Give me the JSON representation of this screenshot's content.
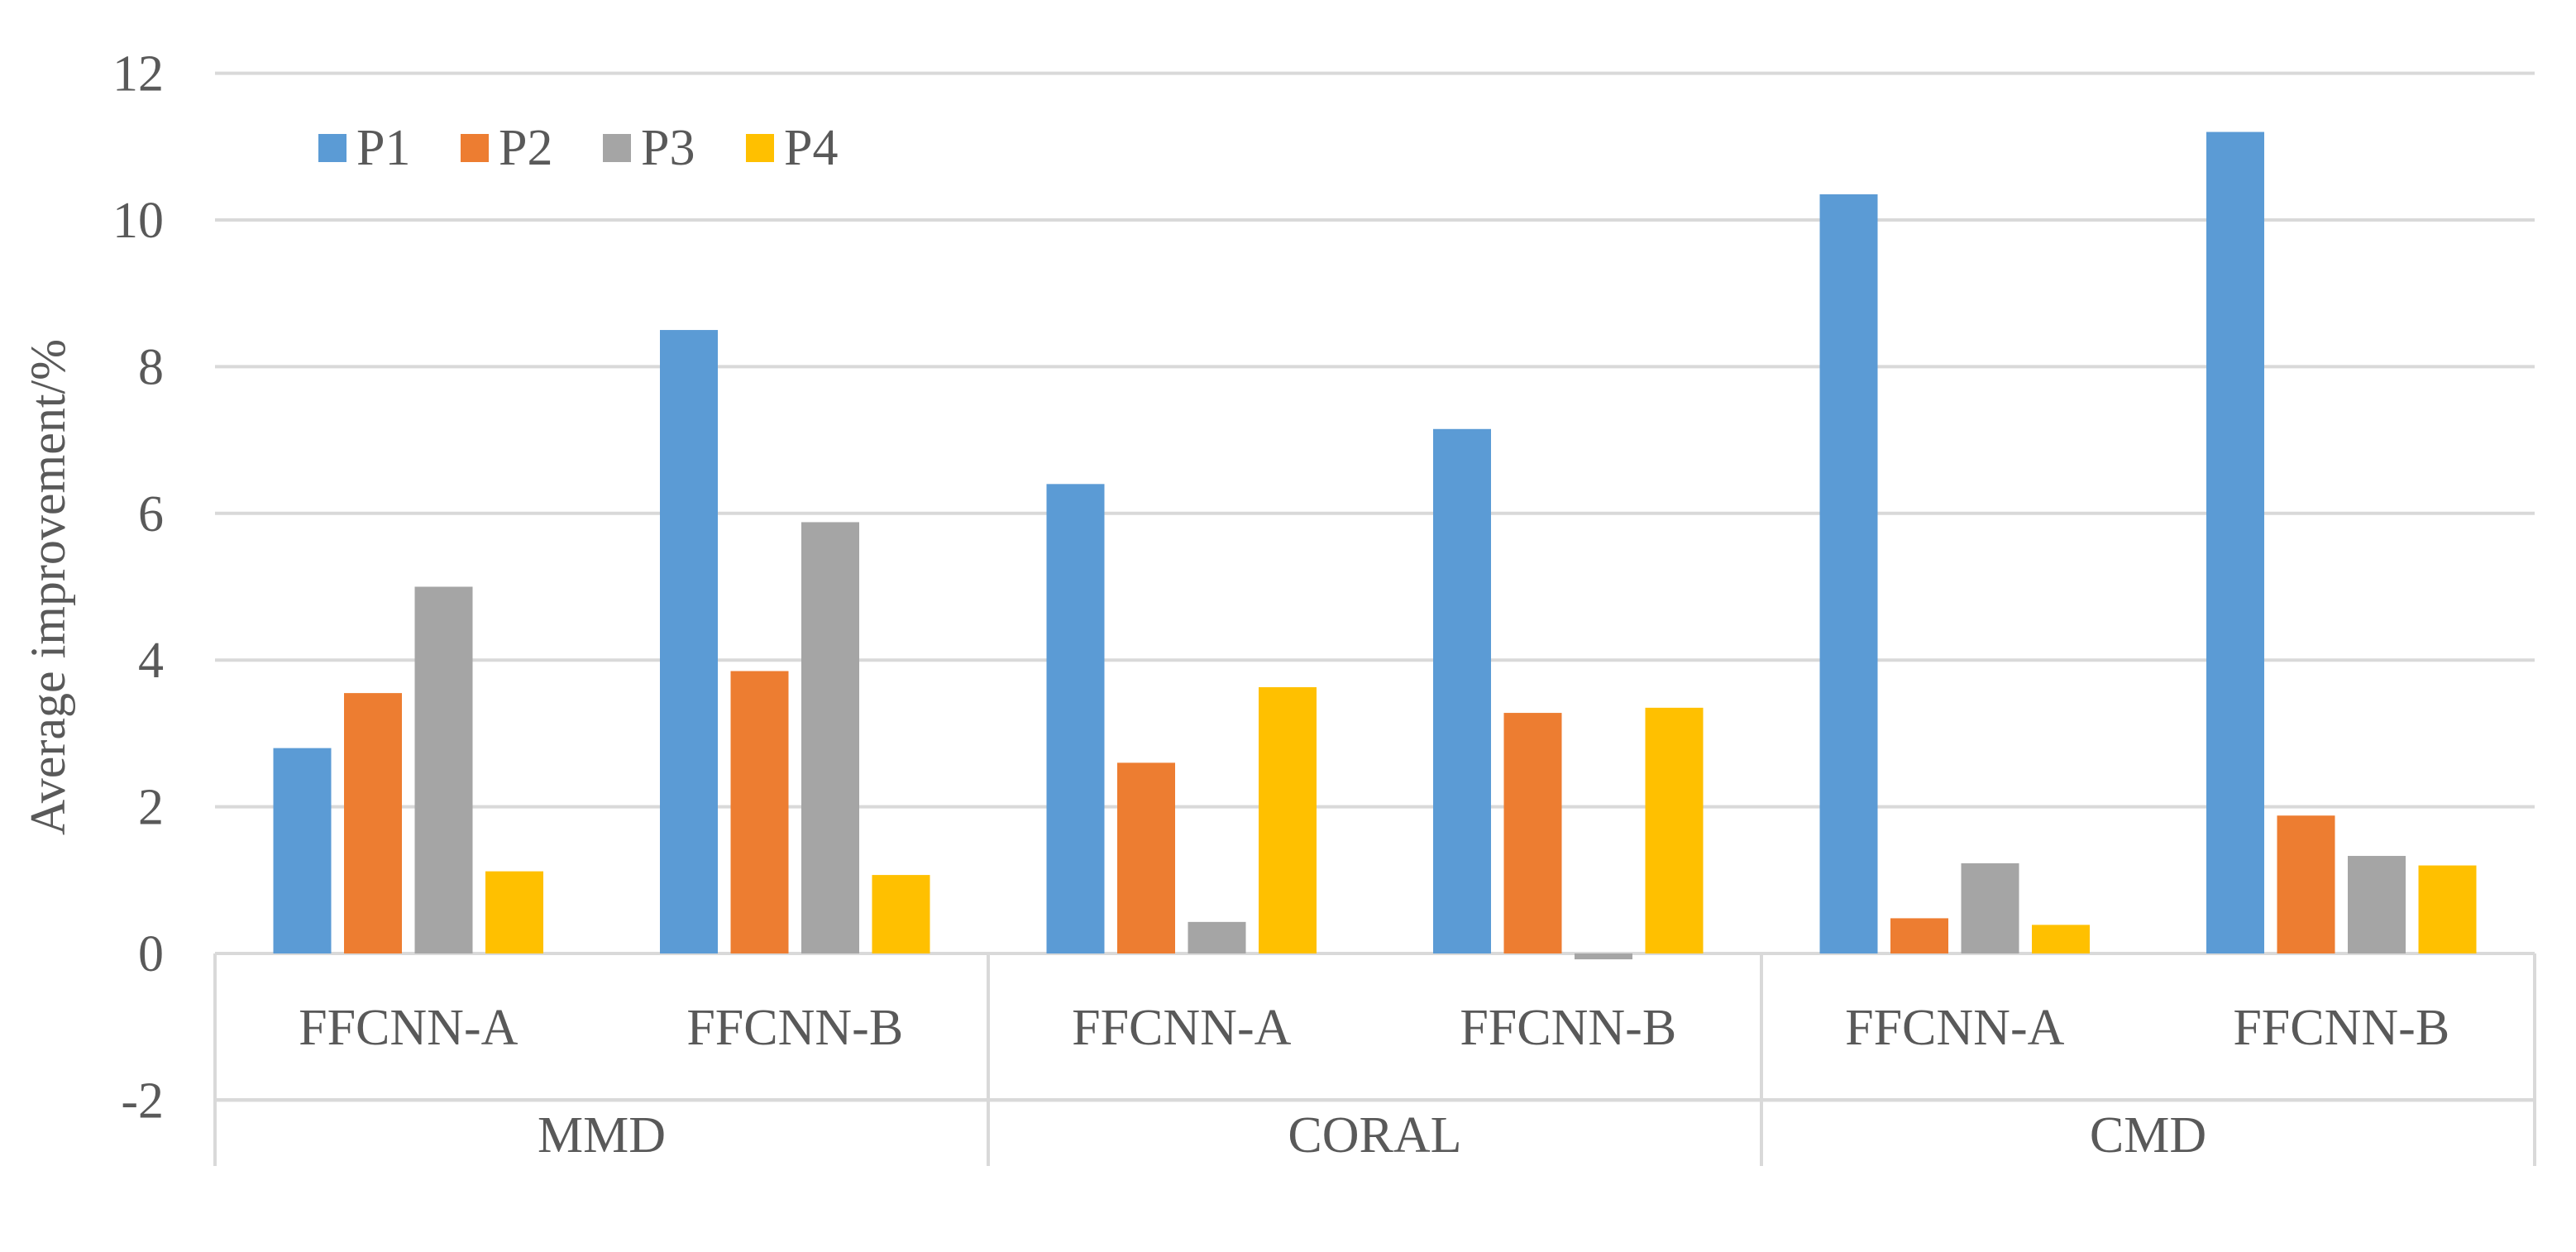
{
  "chart_data": {
    "type": "bar",
    "title": "",
    "xlabel": "",
    "ylabel": "Average improvement/%",
    "ylim": [
      -2,
      12
    ],
    "yticks": [
      -2,
      0,
      2,
      4,
      6,
      8,
      10,
      12
    ],
    "ytick_labels": [
      "-2",
      "0",
      "2",
      "4",
      "6",
      "8",
      "10",
      "12"
    ],
    "grid": true,
    "legend_position": "top-left",
    "groups": [
      {
        "label": "MMD",
        "categories": [
          "FFCNN-A",
          "FFCNN-B"
        ]
      },
      {
        "label": "CORAL",
        "categories": [
          "FFCNN-A",
          "FFCNN-B"
        ]
      },
      {
        "label": "CMD",
        "categories": [
          "FFCNN-A",
          "FFCNN-B"
        ]
      }
    ],
    "categories": [
      "FFCNN-A",
      "FFCNN-B",
      "FFCNN-A",
      "FFCNN-B",
      "FFCNN-A",
      "FFCNN-B"
    ],
    "series": [
      {
        "name": "P1",
        "color": "#5B9BD5",
        "values": [
          2.8,
          8.5,
          6.4,
          7.15,
          10.35,
          11.2
        ]
      },
      {
        "name": "P2",
        "color": "#ED7D31",
        "values": [
          3.55,
          3.85,
          2.6,
          3.28,
          0.48,
          1.88
        ]
      },
      {
        "name": "P3",
        "color": "#A5A5A5",
        "values": [
          5.0,
          5.88,
          0.43,
          -0.08,
          1.23,
          1.33
        ]
      },
      {
        "name": "P4",
        "color": "#FFC000",
        "values": [
          1.12,
          1.07,
          3.63,
          3.35,
          0.39,
          1.2
        ]
      }
    ]
  },
  "colors": {
    "grid": "#D9D9D9",
    "axis_text": "#595959"
  }
}
